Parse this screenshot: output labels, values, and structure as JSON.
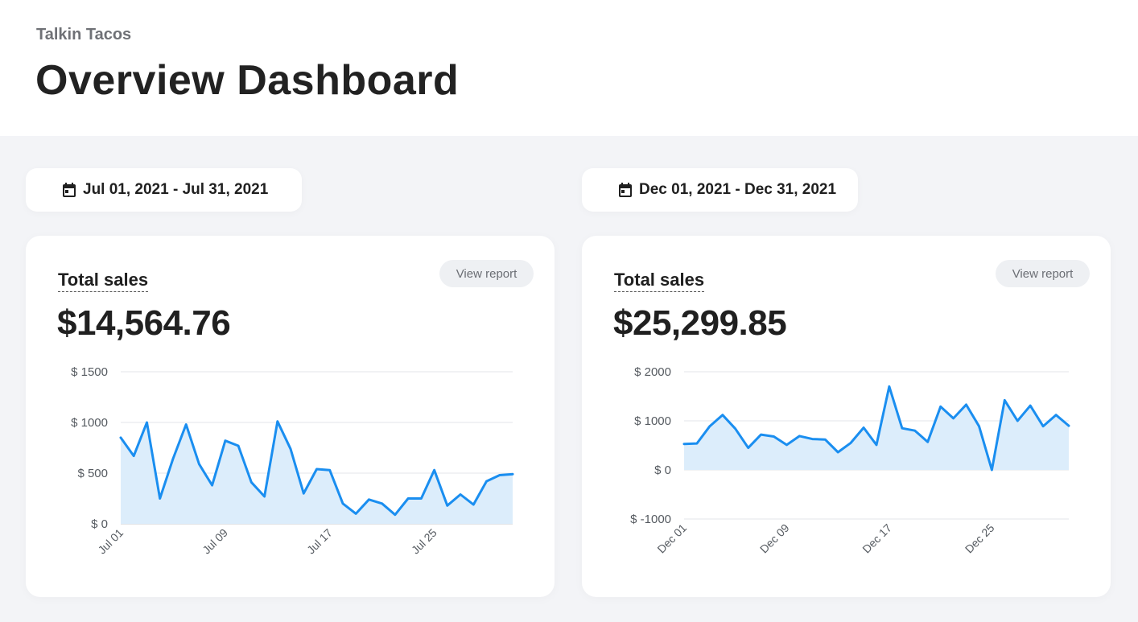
{
  "header": {
    "brand": "Talkin Tacos",
    "title": "Overview Dashboard"
  },
  "colors": {
    "accent": "#1a8ef0",
    "area_fill": "#dcedfb",
    "grid": "#e3e5e8",
    "axis": "#c5c8cc"
  },
  "icons": {
    "date_picker": "calendar-icon"
  },
  "panels": [
    {
      "date_range": "Jul 01, 2021 - Jul 31, 2021",
      "metric_label": "Total sales",
      "metric_value": "$14,564.76",
      "report_label": "View report"
    },
    {
      "date_range": "Dec 01, 2021 - Dec 31, 2021",
      "metric_label": "Total sales",
      "metric_value": "$25,299.85",
      "report_label": "View report"
    }
  ],
  "chart_data": [
    {
      "type": "area",
      "x": [
        "Jul 01",
        "Jul 02",
        "Jul 03",
        "Jul 04",
        "Jul 05",
        "Jul 06",
        "Jul 07",
        "Jul 08",
        "Jul 09",
        "Jul 10",
        "Jul 11",
        "Jul 12",
        "Jul 13",
        "Jul 14",
        "Jul 15",
        "Jul 16",
        "Jul 17",
        "Jul 18",
        "Jul 19",
        "Jul 20",
        "Jul 21",
        "Jul 22",
        "Jul 23",
        "Jul 24",
        "Jul 25",
        "Jul 26",
        "Jul 27",
        "Jul 28",
        "Jul 29",
        "Jul 30",
        "Jul 31"
      ],
      "values": [
        850,
        670,
        1000,
        250,
        640,
        980,
        590,
        380,
        820,
        770,
        410,
        270,
        1010,
        740,
        300,
        540,
        530,
        200,
        100,
        240,
        200,
        90,
        250,
        250,
        530,
        180,
        290,
        190,
        420,
        480,
        490
      ],
      "y_ticks": [
        0,
        500,
        1000,
        1500
      ],
      "y_tick_labels": [
        "$ 0",
        "$ 500",
        "$ 1000",
        "$ 1500"
      ],
      "x_tick_labels": [
        "Jul 01",
        "Jul 09",
        "Jul 17",
        "Jul 25"
      ],
      "ylim": [
        0,
        1500
      ],
      "grid": true,
      "legend": "none"
    },
    {
      "type": "area",
      "x": [
        "Dec 01",
        "Dec 02",
        "Dec 03",
        "Dec 04",
        "Dec 05",
        "Dec 06",
        "Dec 07",
        "Dec 08",
        "Dec 09",
        "Dec 10",
        "Dec 11",
        "Dec 12",
        "Dec 13",
        "Dec 14",
        "Dec 15",
        "Dec 16",
        "Dec 17",
        "Dec 18",
        "Dec 19",
        "Dec 20",
        "Dec 21",
        "Dec 22",
        "Dec 23",
        "Dec 24",
        "Dec 25",
        "Dec 26",
        "Dec 27",
        "Dec 28",
        "Dec 29",
        "Dec 30",
        "Dec 31"
      ],
      "values": [
        530,
        540,
        890,
        1120,
        840,
        450,
        720,
        680,
        510,
        690,
        630,
        620,
        360,
        550,
        860,
        510,
        1700,
        850,
        800,
        570,
        1290,
        1050,
        1330,
        890,
        0,
        1420,
        1000,
        1310,
        890,
        1120,
        900
      ],
      "y_ticks": [
        -1000,
        0,
        1000,
        2000
      ],
      "y_tick_labels": [
        "$ -1000",
        "$ 0",
        "$ 1000",
        "$ 2000"
      ],
      "x_tick_labels": [
        "Dec 01",
        "Dec 09",
        "Dec 17",
        "Dec 25"
      ],
      "ylim": [
        -1000,
        2000
      ],
      "grid": true,
      "legend": "none"
    }
  ]
}
